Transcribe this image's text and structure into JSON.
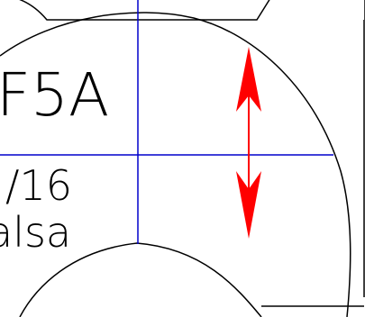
{
  "drawing": {
    "part_label": "F5A",
    "dimension_label": "/16",
    "material_label": "alsa",
    "colors": {
      "background": "#ffffff",
      "outline": "#000000",
      "centerline": "#0000cc",
      "arrow": "#ff0000"
    }
  }
}
